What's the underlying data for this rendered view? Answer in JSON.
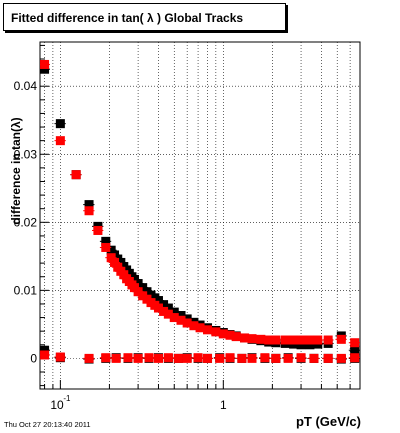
{
  "title": "Fitted difference in tan( λ )  Global Tracks",
  "timestamp": "Thu Oct 27 20:13:40 2011",
  "colors": {
    "series_black": "#000000",
    "series_red": "#ff0000",
    "grid": "#000000"
  },
  "chart_data": {
    "type": "scatter",
    "title": "Fitted difference in tan( λ )  Global Tracks",
    "xlabel": "pT (GeV/c)",
    "ylabel": "difference in tan(λ)",
    "xscale": "log",
    "xlim": [
      0.075,
      6.9
    ],
    "ylim": [
      -0.0045,
      0.0465
    ],
    "grid": true,
    "x_ticks": [
      {
        "value": 0.1,
        "base": "10",
        "exponent": "-1"
      },
      {
        "value": 1,
        "label": "1"
      }
    ],
    "y_ticks": [
      {
        "value": 0,
        "label": "0"
      },
      {
        "value": 0.01,
        "label": "0.01"
      },
      {
        "value": 0.02,
        "label": "0.02"
      },
      {
        "value": 0.03,
        "label": "0.03"
      },
      {
        "value": 0.04,
        "label": "0.04"
      }
    ],
    "series": [
      {
        "color": "#000000",
        "x": [
          0.08,
          0.1,
          0.125,
          0.15,
          0.17,
          0.19,
          0.205,
          0.215,
          0.225,
          0.235,
          0.245,
          0.255,
          0.265,
          0.275,
          0.285,
          0.3,
          0.32,
          0.34,
          0.36,
          0.38,
          0.4,
          0.43,
          0.46,
          0.5,
          0.55,
          0.6,
          0.66,
          0.72,
          0.8,
          0.9,
          1.0,
          1.1,
          1.2,
          1.35,
          1.5,
          1.7,
          1.9,
          2.1,
          2.4,
          2.7,
          3.0,
          3.4,
          3.8,
          4.4,
          5.3,
          6.4
        ],
        "y": [
          0.0425,
          0.0345,
          0.027,
          0.0226,
          0.0194,
          0.0172,
          0.0159,
          0.0152,
          0.0146,
          0.0141,
          0.0135,
          0.013,
          0.0125,
          0.012,
          0.0116,
          0.011,
          0.0104,
          0.0098,
          0.0093,
          0.0089,
          0.0085,
          0.0079,
          0.0074,
          0.0068,
          0.0063,
          0.0058,
          0.0053,
          0.0049,
          0.0045,
          0.0041,
          0.0038,
          0.0035,
          0.0033,
          0.003,
          0.0028,
          0.0026,
          0.0024,
          0.0023,
          0.0022,
          0.0021,
          0.002,
          0.002,
          0.0021,
          0.0022,
          0.0033,
          0.0012
        ]
      },
      {
        "color": "#ff0000",
        "x": [
          0.08,
          0.1,
          0.125,
          0.15,
          0.17,
          0.19,
          0.205,
          0.215,
          0.225,
          0.235,
          0.245,
          0.255,
          0.265,
          0.275,
          0.285,
          0.3,
          0.32,
          0.34,
          0.36,
          0.38,
          0.4,
          0.43,
          0.46,
          0.5,
          0.55,
          0.6,
          0.66,
          0.72,
          0.8,
          0.9,
          1.0,
          1.1,
          1.2,
          1.35,
          1.5,
          1.7,
          1.9,
          2.1,
          2.4,
          2.7,
          3.0,
          3.4,
          3.8,
          4.4,
          5.3,
          6.4
        ],
        "y": [
          0.0432,
          0.032,
          0.027,
          0.0217,
          0.0188,
          0.0163,
          0.0148,
          0.0141,
          0.0134,
          0.0128,
          0.0123,
          0.0117,
          0.0113,
          0.0108,
          0.0104,
          0.0098,
          0.0092,
          0.0087,
          0.0082,
          0.0078,
          0.0074,
          0.0069,
          0.0065,
          0.006,
          0.0056,
          0.0052,
          0.0048,
          0.0045,
          0.0042,
          0.0039,
          0.0036,
          0.0034,
          0.0032,
          0.003,
          0.0029,
          0.0028,
          0.0027,
          0.0027,
          0.0027,
          0.0027,
          0.0027,
          0.0027,
          0.0027,
          0.0027,
          0.0028,
          0.0023
        ]
      },
      {
        "color": "#000000",
        "x": [
          0.08,
          0.1,
          0.15,
          0.19,
          0.22,
          0.26,
          0.3,
          0.35,
          0.4,
          0.46,
          0.53,
          0.6,
          0.7,
          0.8,
          0.95,
          1.1,
          1.3,
          1.5,
          1.8,
          2.1,
          2.5,
          3.0,
          3.6,
          4.4,
          5.3,
          6.4
        ],
        "y": [
          0.0012,
          0.0001,
          -0.0001,
          0.0,
          0.0001,
          0.0,
          0.0001,
          0.0,
          0.0001,
          0.0,
          0.0,
          0.0001,
          0.0,
          0.0,
          0.0001,
          0.0,
          0.0,
          0.0001,
          0.0,
          0.0,
          0.0001,
          0.0,
          0.0,
          0.0,
          -0.0001,
          0.0
        ]
      },
      {
        "color": "#ff0000",
        "x": [
          0.08,
          0.1,
          0.15,
          0.19,
          0.22,
          0.26,
          0.3,
          0.35,
          0.4,
          0.46,
          0.53,
          0.6,
          0.7,
          0.8,
          0.95,
          1.1,
          1.3,
          1.5,
          1.8,
          2.1,
          2.5,
          3.0,
          3.6,
          4.4,
          5.3,
          6.4
        ],
        "y": [
          0.0005,
          0.0002,
          0.0,
          0.0001,
          0.0,
          0.0001,
          0.0,
          0.0001,
          0.0,
          0.0001,
          0.0,
          0.0,
          0.0001,
          0.0,
          0.0,
          0.0001,
          0.0,
          0.0,
          0.0001,
          0.0,
          0.0,
          0.0001,
          0.0,
          0.0,
          0.0,
          0.0001
        ]
      }
    ]
  }
}
